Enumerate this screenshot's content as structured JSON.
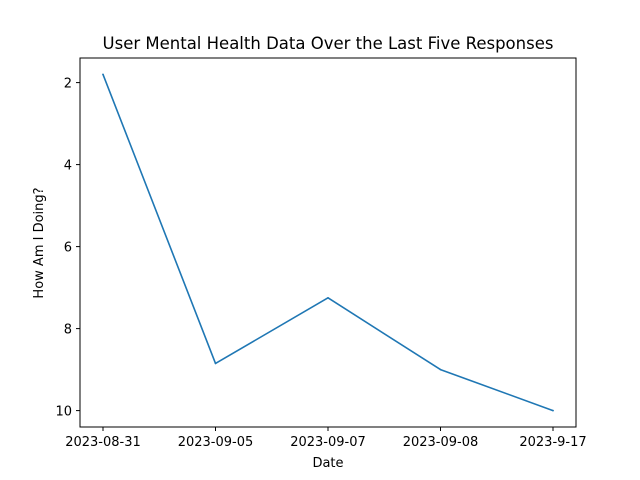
{
  "chart_data": {
    "type": "line",
    "title": "User Mental Health Data Over the Last Five Responses",
    "xlabel": "Date",
    "ylabel": "How Am I Doing?",
    "categories": [
      "2023-08-31",
      "2023-09-05",
      "2023-09-07",
      "2023-09-08",
      "2023-9-17"
    ],
    "values": [
      1.8,
      8.85,
      7.25,
      9.0,
      10.0
    ],
    "y_ticks": [
      2,
      4,
      6,
      8,
      10
    ],
    "y_tick_labels": [
      "2",
      "4",
      "6",
      "8",
      "10"
    ],
    "ylim": [
      10.4,
      1.4
    ],
    "y_inverted": true,
    "grid": false,
    "legend": "none",
    "colors": {
      "line": "#1f77b4",
      "axes": "#000000",
      "background": "#ffffff"
    }
  }
}
